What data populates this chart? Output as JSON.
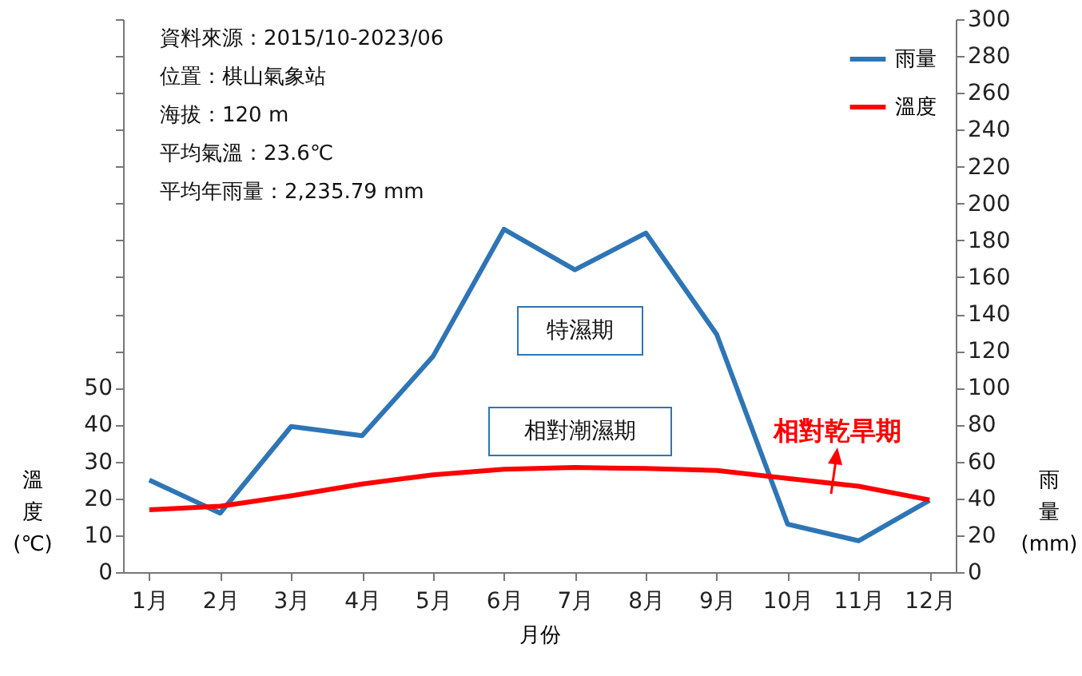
{
  "chart_data": {
    "type": "line",
    "categories": [
      "1月",
      "2月",
      "3月",
      "4月",
      "5月",
      "6月",
      "7月",
      "8月",
      "9月",
      "10月",
      "11月",
      "12月"
    ],
    "series": [
      {
        "name": "雨量",
        "color": "#2e75b6",
        "axis": "y2",
        "values": [
          50,
          32,
          79,
          74,
          117,
          186,
          164,
          184,
          129,
          26,
          17,
          39
        ]
      },
      {
        "name": "溫度",
        "color": "#ff0000",
        "values": [
          16.9,
          17.9,
          20.7,
          23.9,
          26.4,
          27.9,
          28.4,
          28.1,
          27.6,
          25.4,
          23.3,
          19.6
        ]
      }
    ],
    "xlabel": "月份",
    "ylabel": "溫度 (℃)",
    "y2label": "雨量 (mm)",
    "ylim": [
      0,
      150
    ],
    "yticks": [
      0,
      10,
      20,
      30,
      40,
      50,
      {
        "value": 60,
        "label": null
      },
      {
        "value": 70,
        "label": null
      },
      {
        "value": 80,
        "label": null
      },
      {
        "value": 90,
        "label": null
      },
      {
        "value": 100,
        "label": null
      },
      {
        "value": 110,
        "label": null
      },
      {
        "value": 120,
        "label": null
      },
      {
        "value": 130,
        "label": null
      },
      {
        "value": 140,
        "label": null
      },
      {
        "value": 150,
        "label": null
      }
    ],
    "y2lim": [
      0,
      300
    ],
    "y2ticks": [
      0,
      20,
      40,
      60,
      80,
      100,
      120,
      140,
      160,
      180,
      200,
      220,
      240,
      260,
      280,
      300
    ],
    "annotations": [
      "資料來源：2015/10-2023/06",
      "位置：棋山氣象站",
      "海拔：120 m",
      "平均氣溫：23.6℃",
      "平均年雨量：2,235.79 mm",
      "特濕期",
      "相對潮濕期",
      "相對乾旱期"
    ],
    "legend": "top right",
    "grid": false,
    "marker": "none",
    "line_style": "solid"
  }
}
